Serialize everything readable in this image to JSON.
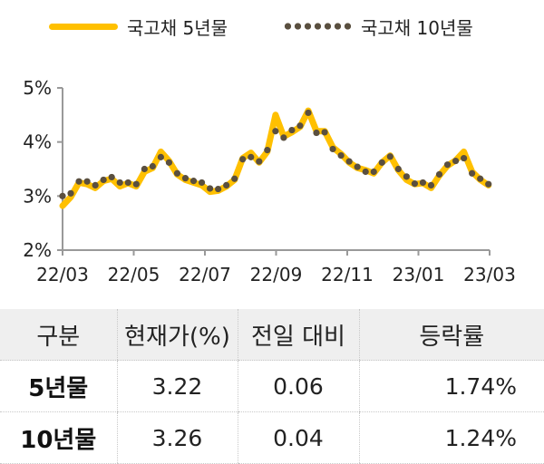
{
  "chart_data": {
    "type": "line",
    "title": "",
    "xlabel": "",
    "ylabel": "",
    "x_ticks": [
      "22/03",
      "22/05",
      "22/07",
      "22/09",
      "22/11",
      "23/01",
      "23/03"
    ],
    "y_ticks": [
      "2%",
      "3%",
      "4%",
      "5%"
    ],
    "ylim": [
      2,
      5
    ],
    "xlim": [
      "2022-03-01",
      "2023-03-01"
    ],
    "grid": false,
    "legend_position": "top",
    "x": [
      "2022-03-01",
      "2022-03-08",
      "2022-03-15",
      "2022-03-22",
      "2022-03-29",
      "2022-04-05",
      "2022-04-12",
      "2022-04-19",
      "2022-04-26",
      "2022-05-03",
      "2022-05-10",
      "2022-05-17",
      "2022-05-24",
      "2022-05-31",
      "2022-06-07",
      "2022-06-14",
      "2022-06-21",
      "2022-06-28",
      "2022-07-05",
      "2022-07-12",
      "2022-07-19",
      "2022-07-26",
      "2022-08-02",
      "2022-08-09",
      "2022-08-16",
      "2022-08-23",
      "2022-08-30",
      "2022-09-06",
      "2022-09-13",
      "2022-09-20",
      "2022-09-27",
      "2022-10-04",
      "2022-10-11",
      "2022-10-18",
      "2022-10-25",
      "2022-11-01",
      "2022-11-08",
      "2022-11-15",
      "2022-11-22",
      "2022-11-29",
      "2022-12-06",
      "2022-12-13",
      "2022-12-20",
      "2022-12-27",
      "2023-01-03",
      "2023-01-10",
      "2023-01-17",
      "2023-01-24",
      "2023-01-31",
      "2023-02-07",
      "2023-02-14",
      "2023-02-21",
      "2023-02-28"
    ],
    "series": [
      {
        "name": "국고채 5년물",
        "color": "#FFC000",
        "style": "thick-line",
        "values": [
          2.82,
          2.98,
          3.25,
          3.22,
          3.15,
          3.28,
          3.32,
          3.18,
          3.24,
          3.18,
          3.45,
          3.52,
          3.82,
          3.65,
          3.4,
          3.3,
          3.25,
          3.2,
          3.08,
          3.1,
          3.18,
          3.3,
          3.7,
          3.8,
          3.62,
          3.82,
          4.5,
          4.1,
          4.18,
          4.28,
          4.58,
          4.2,
          4.2,
          3.9,
          3.78,
          3.62,
          3.52,
          3.48,
          3.42,
          3.62,
          3.75,
          3.48,
          3.3,
          3.22,
          3.24,
          3.15,
          3.38,
          3.56,
          3.66,
          3.82,
          3.45,
          3.3,
          3.2
        ]
      },
      {
        "name": "국고채 10년물",
        "color": "#5a4f3f",
        "style": "dotted",
        "values": [
          3.0,
          3.05,
          3.27,
          3.27,
          3.2,
          3.3,
          3.35,
          3.25,
          3.25,
          3.22,
          3.5,
          3.55,
          3.72,
          3.62,
          3.42,
          3.33,
          3.28,
          3.25,
          3.14,
          3.13,
          3.2,
          3.32,
          3.68,
          3.72,
          3.64,
          3.85,
          4.2,
          4.08,
          4.22,
          4.3,
          4.54,
          4.17,
          4.18,
          3.87,
          3.75,
          3.64,
          3.54,
          3.45,
          3.45,
          3.62,
          3.73,
          3.5,
          3.36,
          3.23,
          3.25,
          3.2,
          3.4,
          3.58,
          3.65,
          3.7,
          3.42,
          3.32,
          3.22
        ]
      }
    ]
  },
  "legend": {
    "item1": "국고채 5년물",
    "item2": "국고채 10년물"
  },
  "table": {
    "headers": [
      "구분",
      "현재가(%)",
      "전일 대비",
      "등락률"
    ],
    "rows": [
      [
        "5년물",
        "3.22",
        "0.06",
        "1.74%"
      ],
      [
        "10년물",
        "3.26",
        "0.04",
        "1.24%"
      ]
    ]
  }
}
